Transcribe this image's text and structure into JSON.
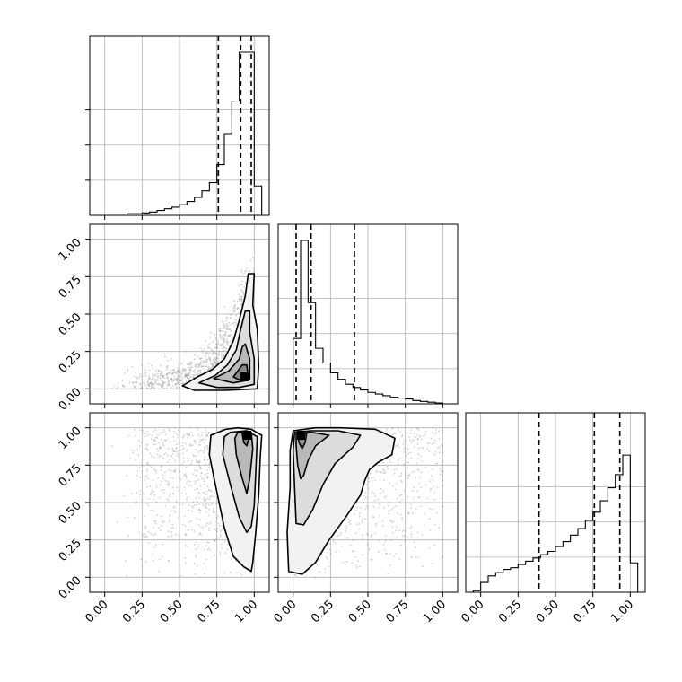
{
  "chart_data": {
    "type": "corner",
    "parameters": [
      "",
      "",
      ""
    ],
    "axis_range": [
      -0.1,
      1.1
    ],
    "ticks": [
      0.0,
      0.25,
      0.5,
      0.75,
      1.0
    ],
    "tick_labels": [
      "0.00",
      "0.25",
      "0.50",
      "0.75",
      "1.00"
    ],
    "grid": true,
    "colors": {
      "marks": "#000000",
      "grid": "#b0b0b0",
      "points": "#9a9a9a",
      "density_fill": "#000000"
    },
    "histograms": [
      {
        "param_index": 0,
        "bins_left": [
          0.1,
          0.15,
          0.2,
          0.25,
          0.3,
          0.35,
          0.4,
          0.45,
          0.5,
          0.55,
          0.6,
          0.65,
          0.7,
          0.75,
          0.8,
          0.85,
          0.9,
          0.95,
          1.0
        ],
        "bin_width": 0.05,
        "relative_counts": [
          0.0,
          0.01,
          0.01,
          0.015,
          0.02,
          0.03,
          0.04,
          0.05,
          0.065,
          0.085,
          0.11,
          0.15,
          0.2,
          0.31,
          0.5,
          0.7,
          1.0,
          1.0,
          0.18
        ],
        "quantiles": [
          0.76,
          0.91,
          0.98
        ]
      },
      {
        "param_index": 1,
        "bins_left": [
          0.0,
          0.05,
          0.1,
          0.15,
          0.2,
          0.25,
          0.3,
          0.35,
          0.4,
          0.45,
          0.5,
          0.55,
          0.6,
          0.65,
          0.7,
          0.75,
          0.8,
          0.85,
          0.9,
          0.95
        ],
        "bin_width": 0.05,
        "relative_counts": [
          0.4,
          1.0,
          0.62,
          0.34,
          0.25,
          0.19,
          0.15,
          0.12,
          0.1,
          0.085,
          0.07,
          0.06,
          0.05,
          0.04,
          0.035,
          0.03,
          0.02,
          0.015,
          0.01,
          0.005
        ],
        "quantiles": [
          0.02,
          0.12,
          0.41
        ]
      },
      {
        "param_index": 2,
        "bins_left": [
          -0.05,
          0.0,
          0.05,
          0.1,
          0.15,
          0.2,
          0.25,
          0.3,
          0.35,
          0.4,
          0.45,
          0.5,
          0.55,
          0.6,
          0.65,
          0.7,
          0.75,
          0.8,
          0.85,
          0.9,
          0.95,
          1.0
        ],
        "bin_width": 0.05,
        "relative_counts": [
          0.01,
          0.06,
          0.1,
          0.12,
          0.14,
          0.15,
          0.17,
          0.19,
          0.21,
          0.23,
          0.25,
          0.28,
          0.31,
          0.35,
          0.39,
          0.44,
          0.49,
          0.56,
          0.64,
          0.72,
          0.84,
          0.18
        ],
        "quantiles": [
          0.39,
          0.76,
          0.93
        ]
      }
    ],
    "scatter_panels": [
      {
        "x_param": 0,
        "y_param": 1,
        "contours": [
          [
            [
              0.52,
              0.02
            ],
            [
              0.62,
              0.08
            ],
            [
              0.72,
              0.13
            ],
            [
              0.8,
              0.2
            ],
            [
              0.86,
              0.32
            ],
            [
              0.9,
              0.46
            ],
            [
              0.94,
              0.62
            ],
            [
              0.96,
              0.77
            ],
            [
              1.0,
              0.77
            ],
            [
              0.99,
              0.56
            ],
            [
              1.02,
              0.4
            ],
            [
              1.03,
              0.15
            ],
            [
              1.02,
              0.0
            ],
            [
              0.8,
              -0.01
            ],
            [
              0.6,
              -0.01
            ],
            [
              0.52,
              0.02
            ]
          ],
          [
            [
              0.63,
              0.04
            ],
            [
              0.74,
              0.09
            ],
            [
              0.82,
              0.16
            ],
            [
              0.88,
              0.26
            ],
            [
              0.91,
              0.4
            ],
            [
              0.94,
              0.52
            ],
            [
              0.97,
              0.52
            ],
            [
              0.97,
              0.38
            ],
            [
              1.0,
              0.2
            ],
            [
              1.0,
              0.03
            ],
            [
              0.9,
              0.01
            ],
            [
              0.75,
              0.01
            ],
            [
              0.63,
              0.04
            ]
          ],
          [
            [
              0.73,
              0.07
            ],
            [
              0.83,
              0.12
            ],
            [
              0.9,
              0.2
            ],
            [
              0.92,
              0.28
            ],
            [
              0.94,
              0.3
            ],
            [
              0.97,
              0.2
            ],
            [
              0.97,
              0.06
            ],
            [
              0.86,
              0.04
            ],
            [
              0.73,
              0.07
            ]
          ],
          [
            [
              0.86,
              0.08
            ],
            [
              0.92,
              0.16
            ],
            [
              0.95,
              0.16
            ],
            [
              0.96,
              0.07
            ],
            [
              0.9,
              0.06
            ],
            [
              0.86,
              0.08
            ]
          ]
        ],
        "density_peak": [
          0.93,
          0.08
        ]
      },
      {
        "x_param": 0,
        "y_param": 2,
        "contours": [
          [
            [
              0.81,
              0.99
            ],
            [
              0.89,
              1.0
            ],
            [
              0.98,
              0.99
            ],
            [
              1.05,
              0.95
            ],
            [
              1.04,
              0.8
            ],
            [
              1.03,
              0.55
            ],
            [
              1.01,
              0.3
            ],
            [
              0.99,
              0.1
            ],
            [
              0.98,
              0.04
            ],
            [
              0.93,
              0.07
            ],
            [
              0.86,
              0.14
            ],
            [
              0.8,
              0.33
            ],
            [
              0.74,
              0.62
            ],
            [
              0.7,
              0.82
            ],
            [
              0.71,
              0.95
            ],
            [
              0.81,
              0.99
            ]
          ],
          [
            [
              0.84,
              0.97
            ],
            [
              0.95,
              0.98
            ],
            [
              1.02,
              0.94
            ],
            [
              1.01,
              0.7
            ],
            [
              1.0,
              0.48
            ],
            [
              0.98,
              0.34
            ],
            [
              0.95,
              0.3
            ],
            [
              0.9,
              0.4
            ],
            [
              0.84,
              0.62
            ],
            [
              0.79,
              0.82
            ],
            [
              0.8,
              0.94
            ],
            [
              0.84,
              0.97
            ]
          ],
          [
            [
              0.89,
              0.97
            ],
            [
              0.98,
              0.97
            ],
            [
              0.99,
              0.86
            ],
            [
              0.97,
              0.66
            ],
            [
              0.95,
              0.56
            ],
            [
              0.92,
              0.66
            ],
            [
              0.88,
              0.82
            ],
            [
              0.87,
              0.93
            ],
            [
              0.89,
              0.97
            ]
          ],
          [
            [
              0.92,
              0.96
            ],
            [
              0.97,
              0.95
            ],
            [
              0.95,
              0.88
            ],
            [
              0.93,
              0.9
            ],
            [
              0.92,
              0.96
            ]
          ]
        ],
        "density_peak": [
          0.95,
          0.95
        ]
      },
      {
        "x_param": 1,
        "y_param": 2,
        "contours": [
          [
            [
              0.0,
              0.98
            ],
            [
              0.15,
              1.0
            ],
            [
              0.32,
              1.0
            ],
            [
              0.55,
              0.99
            ],
            [
              0.68,
              0.93
            ],
            [
              0.66,
              0.82
            ],
            [
              0.57,
              0.77
            ],
            [
              0.51,
              0.72
            ],
            [
              0.48,
              0.65
            ],
            [
              0.45,
              0.55
            ],
            [
              0.35,
              0.4
            ],
            [
              0.24,
              0.25
            ],
            [
              0.15,
              0.1
            ],
            [
              0.06,
              0.02
            ],
            [
              -0.03,
              0.04
            ],
            [
              -0.04,
              0.3
            ],
            [
              -0.02,
              0.6
            ],
            [
              -0.02,
              0.85
            ],
            [
              0.0,
              0.98
            ]
          ],
          [
            [
              0.01,
              0.97
            ],
            [
              0.12,
              0.98
            ],
            [
              0.3,
              0.98
            ],
            [
              0.45,
              0.95
            ],
            [
              0.4,
              0.87
            ],
            [
              0.28,
              0.76
            ],
            [
              0.2,
              0.62
            ],
            [
              0.13,
              0.45
            ],
            [
              0.07,
              0.35
            ],
            [
              0.02,
              0.36
            ],
            [
              0.01,
              0.6
            ],
            [
              0.0,
              0.85
            ],
            [
              0.01,
              0.97
            ]
          ],
          [
            [
              0.02,
              0.96
            ],
            [
              0.12,
              0.97
            ],
            [
              0.24,
              0.95
            ],
            [
              0.15,
              0.88
            ],
            [
              0.1,
              0.78
            ],
            [
              0.07,
              0.68
            ],
            [
              0.05,
              0.66
            ],
            [
              0.03,
              0.75
            ],
            [
              0.02,
              0.88
            ],
            [
              0.02,
              0.96
            ]
          ],
          [
            [
              0.03,
              0.95
            ],
            [
              0.09,
              0.96
            ],
            [
              0.08,
              0.9
            ],
            [
              0.06,
              0.86
            ],
            [
              0.04,
              0.9
            ],
            [
              0.03,
              0.95
            ]
          ]
        ],
        "density_peak": [
          0.05,
          0.95
        ]
      }
    ]
  }
}
